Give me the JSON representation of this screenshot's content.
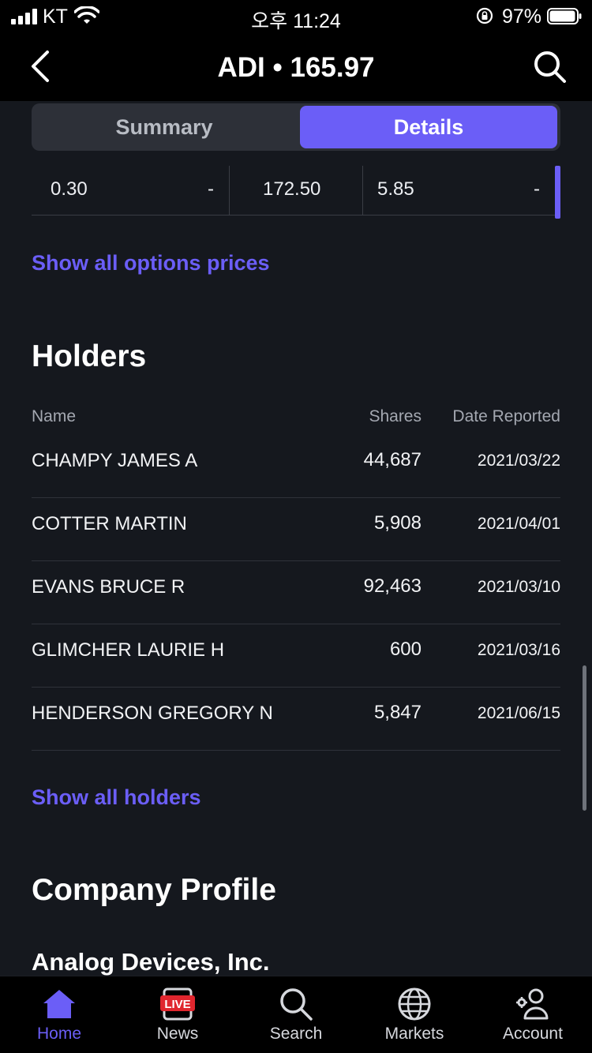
{
  "status_bar": {
    "carrier": "KT",
    "time": "오후 11:24",
    "battery": "97%"
  },
  "header": {
    "title": "ADI • 165.97",
    "back_icon": "chevron-left-icon",
    "search_icon": "search-icon"
  },
  "segments": [
    {
      "label": "Summary",
      "active": false
    },
    {
      "label": "Details",
      "active": true
    }
  ],
  "options_row": {
    "c1": "0.30",
    "c2": "-",
    "c3": "172.50",
    "c4": "5.85",
    "c5": "-"
  },
  "options_link": "Show all options prices",
  "holders": {
    "title": "Holders",
    "columns": {
      "name": "Name",
      "shares": "Shares",
      "date": "Date Reported"
    },
    "rows": [
      {
        "name": "CHAMPY JAMES A",
        "shares": "44,687",
        "date": "2021/03/22"
      },
      {
        "name": "COTTER MARTIN",
        "shares": "5,908",
        "date": "2021/04/01"
      },
      {
        "name": "EVANS BRUCE R",
        "shares": "92,463",
        "date": "2021/03/10"
      },
      {
        "name": "GLIMCHER LAURIE H",
        "shares": "600",
        "date": "2021/03/16"
      },
      {
        "name": "HENDERSON GREGORY N",
        "shares": "5,847",
        "date": "2021/06/15"
      }
    ],
    "link": "Show all holders"
  },
  "company_profile": {
    "title": "Company Profile",
    "name": "Analog Devices, Inc."
  },
  "tab_bar": {
    "tabs": [
      {
        "label": "Home",
        "icon": "home-icon",
        "active": true
      },
      {
        "label": "News",
        "icon": "news-live-icon",
        "badge": "LIVE",
        "active": false
      },
      {
        "label": "Search",
        "icon": "search-icon",
        "active": false
      },
      {
        "label": "Markets",
        "icon": "globe-icon",
        "active": false
      },
      {
        "label": "Account",
        "icon": "account-icon",
        "active": false
      }
    ]
  },
  "colors": {
    "accent": "#6b5ef7",
    "background": "#15181e",
    "bar": "#000000"
  }
}
